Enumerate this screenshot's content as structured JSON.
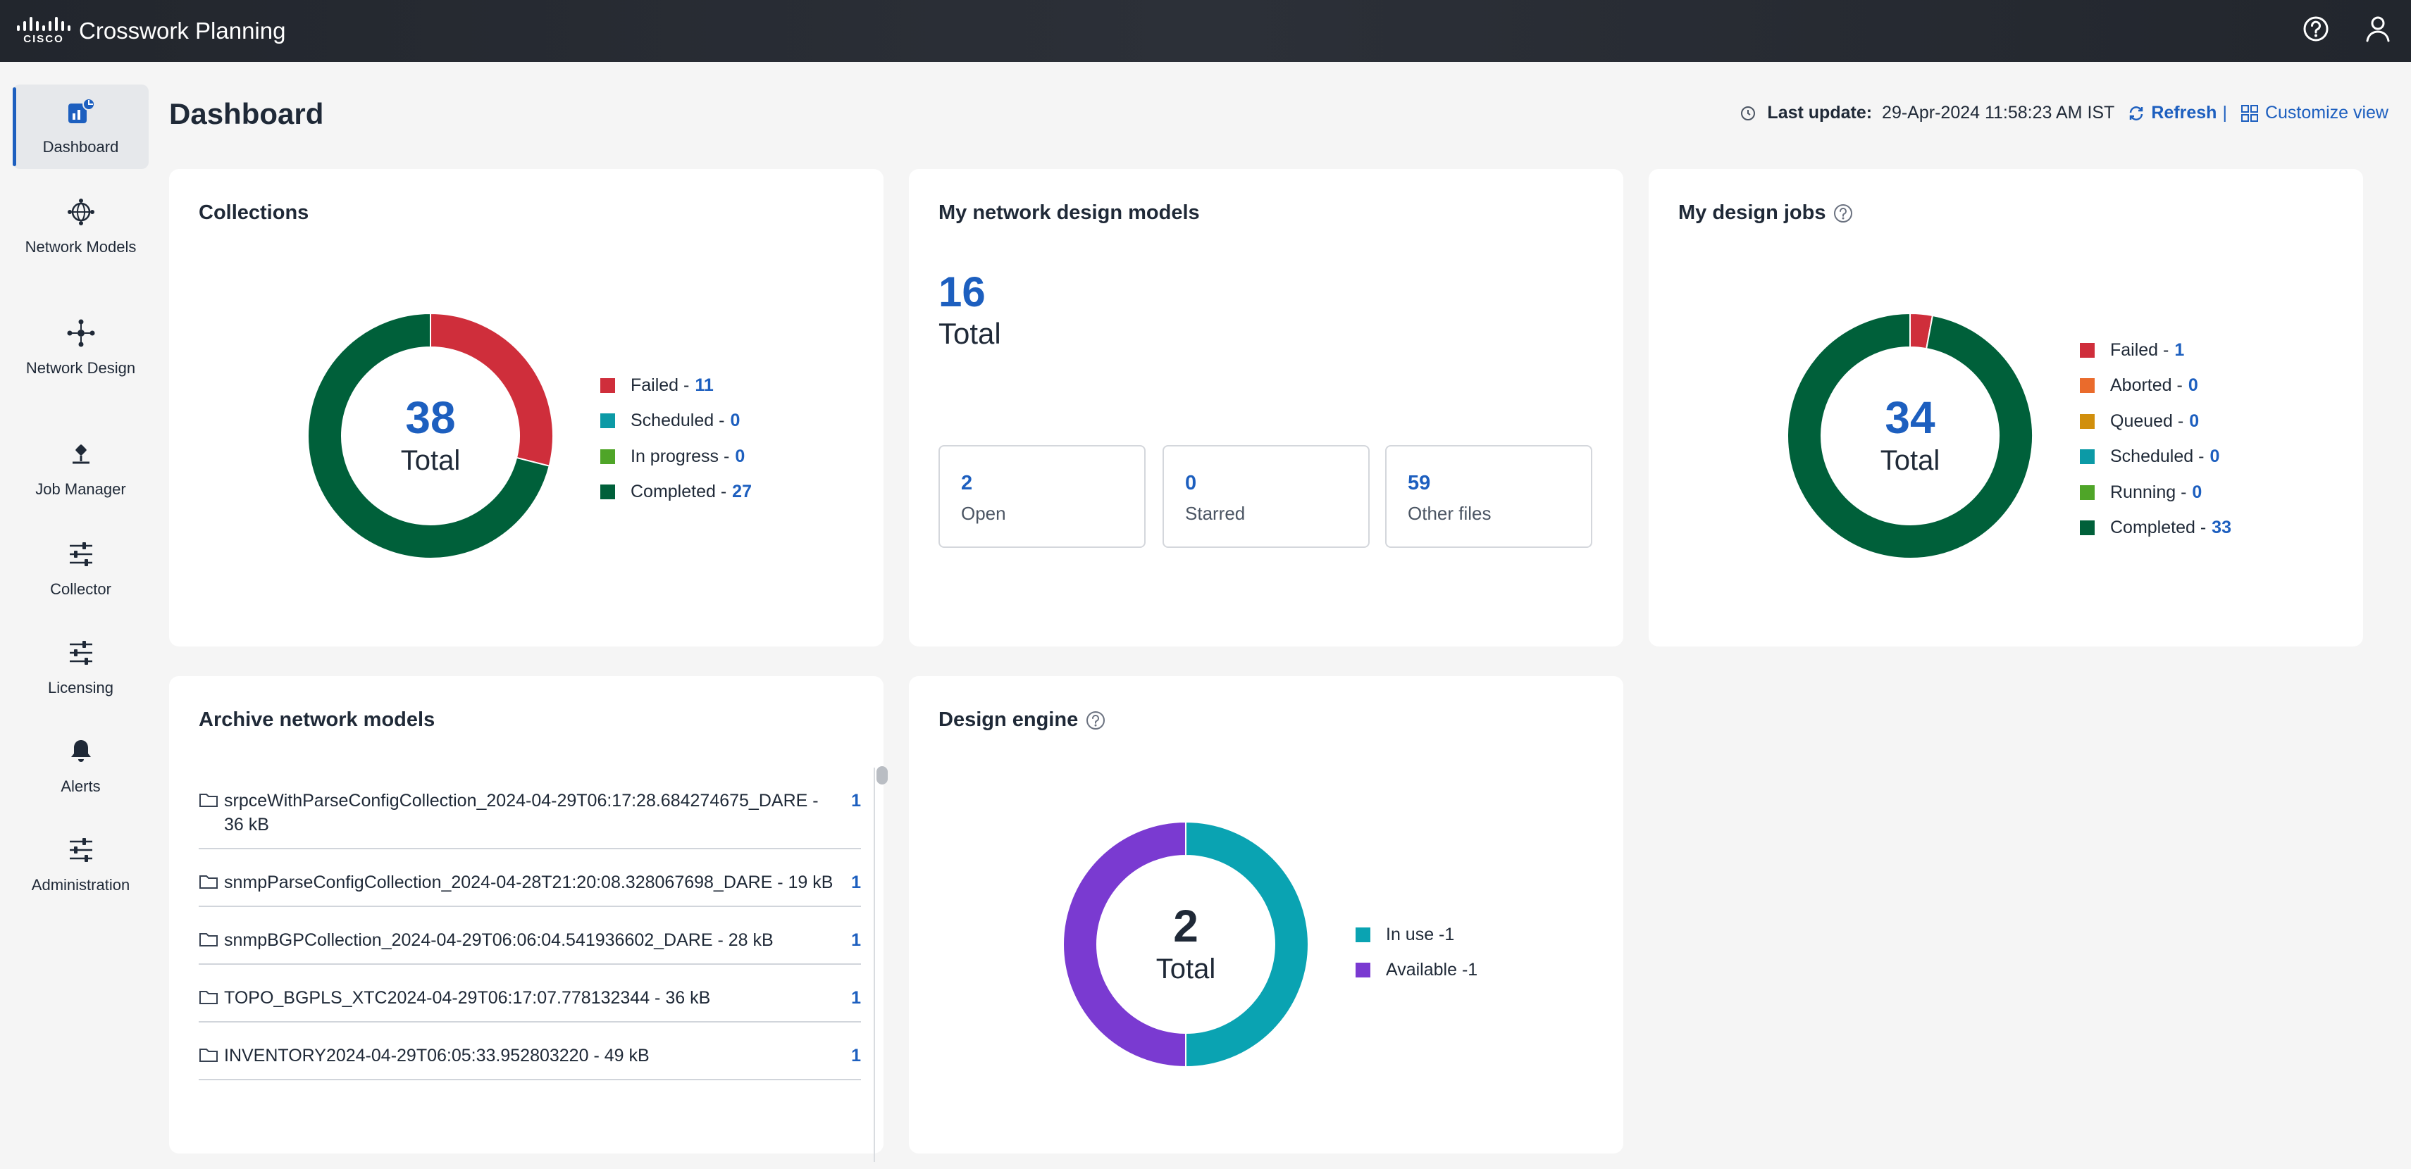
{
  "app": {
    "logo_text": "CISCO",
    "title": "Crosswork Planning"
  },
  "sidebar": {
    "items": [
      {
        "label": "Dashboard",
        "icon": "dashboard-icon",
        "active": true
      },
      {
        "label": "Network Models",
        "icon": "network-models-icon"
      },
      {
        "label": "Network Design",
        "icon": "network-design-icon"
      },
      {
        "label": "Job Manager",
        "icon": "job-manager-icon"
      },
      {
        "label": "Collector",
        "icon": "collector-icon"
      },
      {
        "label": "Licensing",
        "icon": "licensing-icon"
      },
      {
        "label": "Alerts",
        "icon": "bell-icon"
      },
      {
        "label": "Administration",
        "icon": "administration-icon"
      }
    ]
  },
  "header": {
    "title": "Dashboard",
    "last_update_label": "Last update:",
    "last_update_value": "29-Apr-2024 11:58:23 AM IST",
    "refresh_label": "Refresh",
    "separator": "|",
    "customize_label": "Customize view"
  },
  "collections": {
    "title": "Collections",
    "total": "38",
    "total_label": "Total",
    "legend": [
      {
        "label": "Failed - ",
        "value": 11,
        "color": "#cf2e3b"
      },
      {
        "label": "Scheduled - ",
        "value": 0,
        "color": "#0c9aa6"
      },
      {
        "label": "In progress - ",
        "value": 0,
        "color": "#4fa528"
      },
      {
        "label": "Completed - ",
        "value": 27,
        "color": "#00603a"
      }
    ]
  },
  "models": {
    "title": "My network design models",
    "total": "16",
    "total_label": "Total",
    "stats": [
      {
        "value": "2",
        "label": "Open"
      },
      {
        "value": "0",
        "label": "Starred"
      },
      {
        "value": "59",
        "label": "Other files"
      }
    ]
  },
  "jobs": {
    "title": "My design jobs",
    "total": "34",
    "total_label": "Total",
    "legend": [
      {
        "label": "Failed - ",
        "value": 1,
        "color": "#cf2e3b"
      },
      {
        "label": "Aborted - ",
        "value": 0,
        "color": "#ea6b2c"
      },
      {
        "label": "Queued - ",
        "value": 0,
        "color": "#d18f0c"
      },
      {
        "label": "Scheduled - ",
        "value": 0,
        "color": "#0c9aa6"
      },
      {
        "label": "Running - ",
        "value": 0,
        "color": "#4fa528"
      },
      {
        "label": "Completed - ",
        "value": 33,
        "color": "#00603a"
      }
    ]
  },
  "archive": {
    "title": "Archive network models",
    "rows": [
      {
        "name": "srpceWithParseConfigCollection_2024-04-29T06:17:28.684274675_DARE - 36 kB",
        "count": "1"
      },
      {
        "name": "snmpParseConfigCollection_2024-04-28T21:20:08.328067698_DARE - 19 kB",
        "count": "1"
      },
      {
        "name": "snmpBGPCollection_2024-04-29T06:06:04.541936602_DARE - 28 kB",
        "count": "1"
      },
      {
        "name": "TOPO_BGPLS_XTC2024-04-29T06:17:07.778132344 - 36 kB",
        "count": "1"
      },
      {
        "name": "INVENTORY2024-04-29T06:05:33.952803220 - 49 kB",
        "count": "1"
      }
    ]
  },
  "engine": {
    "title": "Design engine",
    "total": "2",
    "total_label": "Total",
    "legend": [
      {
        "label": "In use - ",
        "value": 1,
        "color": "#0aa3b2"
      },
      {
        "label": "Available - ",
        "value": 1,
        "color": "#7a3ad1"
      }
    ]
  }
}
